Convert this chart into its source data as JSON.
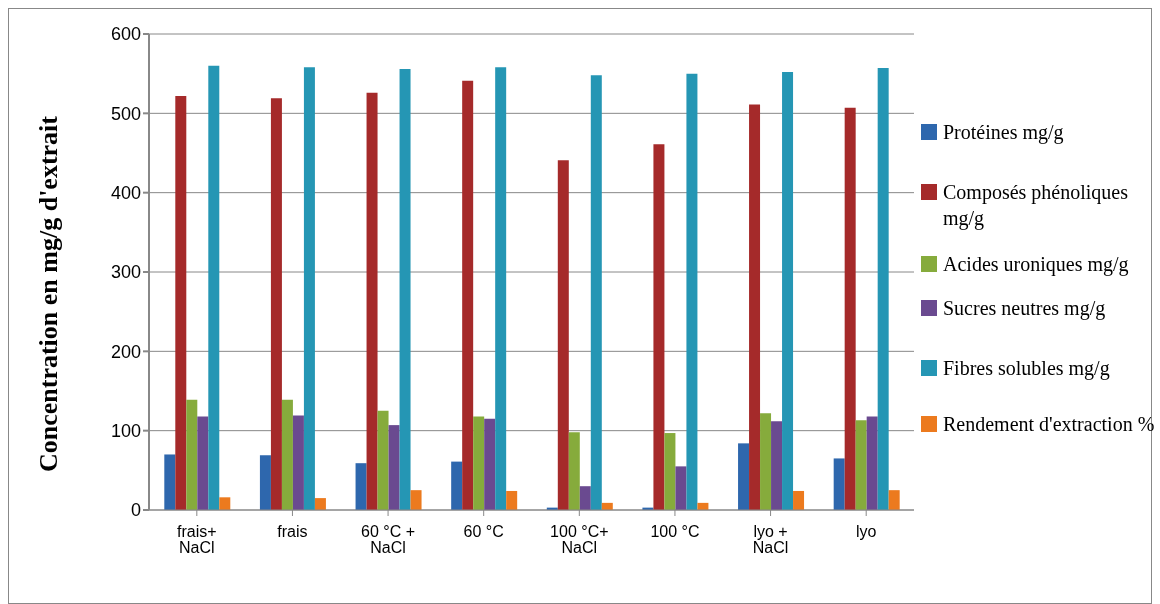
{
  "chart_data": {
    "type": "bar",
    "ylabel": "Concentration en mg/g d'extrait",
    "categories": [
      "frais+ NaCl",
      "frais",
      "60 °C + NaCl",
      "60 °C",
      "100 °C+ NaCl",
      "100 °C",
      "lyo + NaCl",
      "lyo"
    ],
    "series": [
      {
        "name": "Protéines mg/g",
        "color": "#2e67ad",
        "values": [
          70,
          69,
          59,
          61,
          3,
          3,
          84,
          65
        ]
      },
      {
        "name": "Composés phénoliques mg/g",
        "color": "#a52a2a",
        "values": [
          522,
          519,
          526,
          541,
          441,
          461,
          511,
          507
        ]
      },
      {
        "name": "Acides uroniques mg/g",
        "color": "#86ab3c",
        "values": [
          139,
          139,
          125,
          118,
          98,
          97,
          122,
          113
        ]
      },
      {
        "name": "Sucres neutres mg/g",
        "color": "#6a4a90",
        "values": [
          118,
          119,
          107,
          115,
          30,
          55,
          112,
          118
        ]
      },
      {
        "name": "Fibres solubles mg/g",
        "color": "#2596b4",
        "values": [
          560,
          558,
          556,
          558,
          548,
          550,
          552,
          557
        ]
      },
      {
        "name": "Rendement d'extraction %",
        "color": "#ec7a1e",
        "values": [
          16,
          15,
          25,
          24,
          9,
          9,
          24,
          25
        ]
      }
    ],
    "ylim": [
      0,
      600
    ],
    "yticks": [
      0,
      100,
      200,
      300,
      400,
      500,
      600
    ],
    "grid": "y",
    "legend": "right"
  }
}
